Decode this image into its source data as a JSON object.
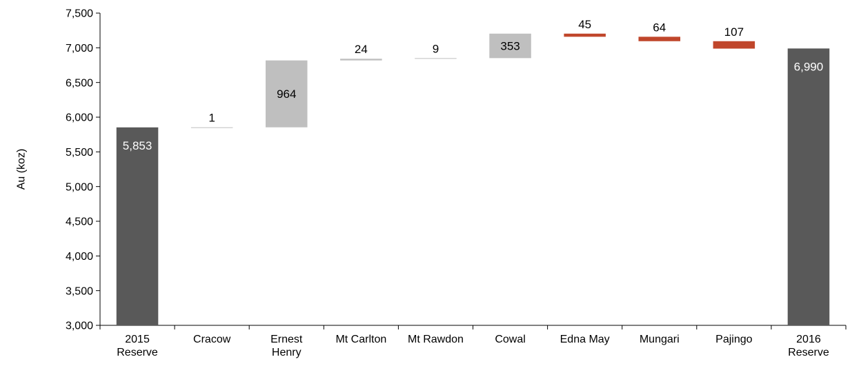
{
  "chart_data": {
    "type": "waterfall",
    "ylabel": "Au (koz)",
    "ylim": [
      3000,
      7500
    ],
    "yticks": [
      3000,
      3500,
      4000,
      4500,
      5000,
      5500,
      6000,
      6500,
      7000,
      7500
    ],
    "ytick_labels": [
      "3,000",
      "3,500",
      "4,000",
      "4,500",
      "5,000",
      "5,500",
      "6,000",
      "6,500",
      "7,000",
      "7,500"
    ],
    "grid": false,
    "colors": {
      "total": "#595959",
      "increase": "#bfbfbf",
      "decrease": "#c0462b",
      "total_label": "#ffffff",
      "step_label": "#000000"
    },
    "bars": [
      {
        "label_lines": [
          "2015",
          "Reserve"
        ],
        "kind": "total",
        "value": 5853,
        "label": "5,853"
      },
      {
        "label_lines": [
          "Cracow"
        ],
        "kind": "increase",
        "value": 1,
        "label": "1"
      },
      {
        "label_lines": [
          "Ernest",
          "Henry"
        ],
        "kind": "increase",
        "value": 964,
        "label": "964"
      },
      {
        "label_lines": [
          "Mt Carlton"
        ],
        "kind": "increase",
        "value": 24,
        "label": "24"
      },
      {
        "label_lines": [
          "Mt Rawdon"
        ],
        "kind": "increase",
        "value": 9,
        "label": "9"
      },
      {
        "label_lines": [
          "Cowal"
        ],
        "kind": "increase",
        "value": 353,
        "label": "353"
      },
      {
        "label_lines": [
          "Edna May"
        ],
        "kind": "decrease",
        "value": 45,
        "label": "45"
      },
      {
        "label_lines": [
          "Mungari"
        ],
        "kind": "decrease",
        "value": 64,
        "label": "64"
      },
      {
        "label_lines": [
          "Pajingo"
        ],
        "kind": "decrease",
        "value": 107,
        "label": "107"
      },
      {
        "label_lines": [
          "2016",
          "Reserve"
        ],
        "kind": "total",
        "value": 6990,
        "label": "6,990"
      }
    ]
  }
}
